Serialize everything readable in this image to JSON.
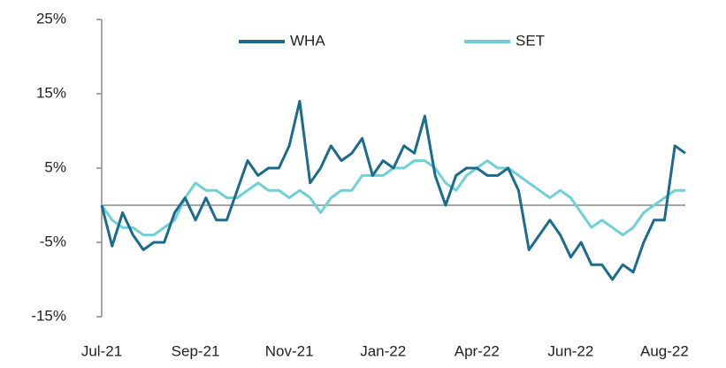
{
  "chart_data": {
    "type": "line",
    "categories": [
      "Jul-21",
      null,
      null,
      null,
      null,
      null,
      null,
      null,
      null,
      "Sep-21",
      null,
      null,
      null,
      null,
      null,
      null,
      null,
      null,
      "Nov-21",
      null,
      null,
      null,
      null,
      null,
      null,
      null,
      null,
      "Jan-22",
      null,
      null,
      null,
      null,
      null,
      null,
      null,
      null,
      "Apr-22",
      null,
      null,
      null,
      null,
      null,
      null,
      null,
      null,
      "Jun-22",
      null,
      null,
      null,
      null,
      null,
      null,
      null,
      null,
      "Aug-22",
      null,
      null
    ],
    "series": [
      {
        "name": "WHA",
        "color": "#1b6b8c",
        "values": [
          0,
          -5.5,
          -1,
          -4,
          -6,
          -5,
          -5,
          -1,
          1,
          -2,
          1,
          -2,
          -2,
          2,
          6,
          4,
          5,
          5,
          8,
          14,
          3,
          5,
          8,
          6,
          7,
          9,
          4,
          6,
          5,
          8,
          7,
          12,
          4,
          0,
          4,
          5,
          5,
          4,
          4,
          5,
          2,
          -6,
          -4,
          -2,
          -4,
          -7,
          -5,
          -8,
          -8,
          -10,
          -8,
          -9,
          -5,
          -2,
          -2,
          8,
          7
        ]
      },
      {
        "name": "SET",
        "color": "#6fd0d6",
        "values": [
          0,
          -2,
          -3,
          -3,
          -4,
          -4,
          -3,
          -2,
          1,
          3,
          2,
          2,
          1,
          1,
          2,
          3,
          2,
          2,
          1,
          2,
          1,
          -1,
          1,
          2,
          2,
          4,
          4,
          4,
          5,
          5,
          6,
          6,
          5,
          3,
          2,
          4,
          5,
          6,
          5,
          5,
          4,
          3,
          2,
          1,
          2,
          1,
          -1,
          -3,
          -2,
          -3,
          -4,
          -3,
          -1,
          0,
          1,
          2,
          2
        ]
      }
    ],
    "ylim": [
      -15,
      25
    ],
    "yticks": [
      {
        "value": -15,
        "label": "-15%"
      },
      {
        "value": -5,
        "label": "-5%"
      },
      {
        "value": 5,
        "label": "5%"
      },
      {
        "value": 15,
        "label": "15%"
      },
      {
        "value": 25,
        "label": "25%"
      }
    ],
    "legend": "top"
  }
}
